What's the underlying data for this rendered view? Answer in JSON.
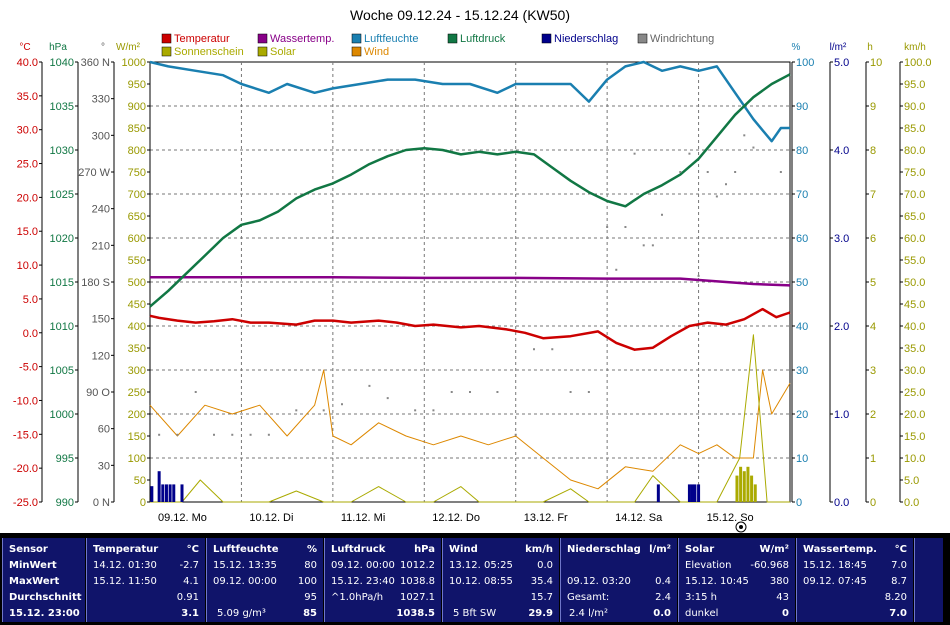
{
  "chart_data": {
    "type": "line",
    "title": "Woche 09.12.24 - 15.12.24 (KW50)",
    "x_labels": [
      "09.12. Mo",
      "10.12. Di",
      "11.12. Mi",
      "12.12. Do",
      "13.12. Fr",
      "14.12. Sa",
      "15.12. So"
    ],
    "legend": [
      {
        "label": "Temperatur",
        "color": "#cc0000"
      },
      {
        "label": "Wassertemp.",
        "color": "#880088"
      },
      {
        "label": "Luftfeuchte",
        "color": "#1a7fb0"
      },
      {
        "label": "Luftdruck",
        "color": "#117744"
      },
      {
        "label": "Niederschlag",
        "color": "#00008b"
      },
      {
        "label": "Windrichtung",
        "color": "#888888"
      },
      {
        "label": "Sonnenschein",
        "color": "#aaaa00"
      },
      {
        "label": "Solar",
        "color": "#aaaa00"
      },
      {
        "label": "Wind",
        "color": "#dd8800"
      }
    ],
    "axes": [
      {
        "unit": "°C",
        "color": "#cc0000",
        "ticks": [
          "40.0",
          "35.0",
          "30.0",
          "25.0",
          "20.0",
          "15.0",
          "10.0",
          "5.0",
          "0.0",
          "-5.0",
          "-10.0",
          "-15.0",
          "-20.0",
          "-25.0"
        ]
      },
      {
        "unit": "hPa",
        "color": "#117744",
        "ticks": [
          "1040",
          "1035",
          "1030",
          "1025",
          "1020",
          "1015",
          "1010",
          "1005",
          "1000",
          "995",
          "990"
        ]
      },
      {
        "unit": "°",
        "color": "#555555",
        "ticks": [
          "360 N",
          "330",
          "300",
          "270 W",
          "240",
          "210",
          "180 S",
          "150",
          "120",
          "90 O",
          "60",
          "30",
          "0 N"
        ]
      },
      {
        "unit": "W/m²",
        "color": "#999900",
        "ticks": [
          "1000",
          "950",
          "900",
          "850",
          "800",
          "750",
          "700",
          "650",
          "600",
          "550",
          "500",
          "450",
          "400",
          "350",
          "300",
          "250",
          "200",
          "150",
          "100",
          "50",
          "0"
        ]
      },
      {
        "unit": "%",
        "color": "#1a7fb0",
        "ticks": [
          "100",
          "90",
          "80",
          "70",
          "60",
          "50",
          "40",
          "30",
          "20",
          "10",
          "0"
        ]
      },
      {
        "unit": "l/m²",
        "color": "#00008b",
        "ticks": [
          "5.0",
          "4.0",
          "3.0",
          "2.0",
          "1.0",
          "0.0"
        ]
      },
      {
        "unit": "h",
        "color": "#999900",
        "ticks": [
          "10",
          "9",
          "8",
          "7",
          "6",
          "5",
          "4",
          "3",
          "2",
          "1",
          "0"
        ]
      },
      {
        "unit": "km/h",
        "color": "#999900",
        "ticks": [
          "100.0",
          "95.0",
          "90.0",
          "85.0",
          "80.0",
          "75.0",
          "70.0",
          "65.0",
          "60.0",
          "55.0",
          "50.0",
          "45.0",
          "40.0",
          "35.0",
          "30.0",
          "25.0",
          "20.0",
          "15.0",
          "10.0",
          "5.0",
          "0.0"
        ]
      }
    ],
    "series": [
      {
        "name": "Temperatur",
        "color": "#cc0000",
        "axis": "°C",
        "x": [
          0,
          0.1,
          0.3,
          0.5,
          0.7,
          0.9,
          1.1,
          1.3,
          1.6,
          1.8,
          2.0,
          2.2,
          2.5,
          2.7,
          2.9,
          3.1,
          3.4,
          3.6,
          3.9,
          4.1,
          4.3,
          4.6,
          4.9,
          5.1,
          5.3,
          5.5,
          5.7,
          5.9,
          6.1,
          6.3,
          6.5,
          6.7,
          6.85,
          7.0
        ],
        "y": [
          2.5,
          2.2,
          1.8,
          1.5,
          1.7,
          2.0,
          1.5,
          1.5,
          1.2,
          1.8,
          1.8,
          1.5,
          1.8,
          1.5,
          1.0,
          1.2,
          0.8,
          1.0,
          0.5,
          0.0,
          -0.8,
          -0.5,
          0.2,
          -1.5,
          -2.5,
          -2.2,
          -0.5,
          1.0,
          1.5,
          1.2,
          2.0,
          3.5,
          2.3,
          3.0
        ]
      },
      {
        "name": "Wassertemp.",
        "color": "#880088",
        "axis": "°C",
        "x": [
          0,
          1,
          2,
          3,
          4,
          5,
          5.8,
          6.3,
          6.6,
          7.0
        ],
        "y": [
          8.2,
          8.2,
          8.2,
          8.1,
          8.1,
          8.0,
          8.0,
          7.5,
          7.2,
          7.0
        ]
      },
      {
        "name": "Luftfeuchte",
        "color": "#1a7fb0",
        "axis": "%",
        "x": [
          0,
          0.2,
          0.5,
          0.8,
          1.0,
          1.3,
          1.5,
          1.8,
          2.0,
          2.3,
          2.6,
          2.9,
          3.2,
          3.5,
          3.8,
          4.0,
          4.3,
          4.6,
          4.8,
          5.0,
          5.2,
          5.4,
          5.6,
          5.8,
          6.0,
          6.2,
          6.4,
          6.6,
          6.8,
          6.9,
          7.0
        ],
        "y": [
          100,
          99,
          98,
          97,
          95,
          93,
          95,
          93,
          94,
          95,
          96,
          96,
          95,
          95,
          93,
          95,
          95,
          95,
          91,
          96,
          99,
          100,
          98,
          99,
          98,
          99,
          93,
          87,
          82,
          85,
          85
        ]
      },
      {
        "name": "Luftdruck",
        "color": "#117744",
        "axis": "hPa",
        "x": [
          0,
          0.2,
          0.4,
          0.6,
          0.8,
          1.0,
          1.2,
          1.4,
          1.6,
          1.8,
          2.0,
          2.2,
          2.4,
          2.6,
          2.8,
          3.0,
          3.2,
          3.4,
          3.6,
          3.8,
          4.0,
          4.2,
          4.4,
          4.6,
          4.8,
          5.0,
          5.2,
          5.4,
          5.6,
          5.8,
          6.0,
          6.2,
          6.4,
          6.6,
          6.8,
          7.0
        ],
        "y": [
          1012.2,
          1014,
          1016,
          1018,
          1020,
          1021.5,
          1022,
          1023,
          1024.5,
          1025.5,
          1026.2,
          1027.2,
          1028.4,
          1029.3,
          1030,
          1030.2,
          1030,
          1029.5,
          1029.8,
          1029.5,
          1029.8,
          1029.5,
          1028,
          1026.5,
          1025.2,
          1024.2,
          1023.6,
          1025,
          1026,
          1027.2,
          1029,
          1031.5,
          1034,
          1036,
          1037.5,
          1038.6
        ]
      },
      {
        "name": "Wind",
        "color": "#dd8800",
        "axis": "km/h",
        "x": [
          0,
          0.3,
          0.6,
          0.9,
          1.2,
          1.5,
          1.8,
          1.9,
          2.0,
          2.2,
          2.5,
          2.8,
          3.1,
          3.4,
          3.7,
          4.0,
          4.3,
          4.6,
          4.9,
          5.2,
          5.5,
          5.8,
          6.0,
          6.2,
          6.4,
          6.6,
          6.7,
          6.8,
          7.0
        ],
        "y": [
          22,
          15,
          22,
          20,
          22,
          15,
          22,
          30,
          15,
          13,
          18,
          15,
          13,
          15,
          13,
          15,
          10,
          5,
          3,
          8,
          7,
          13,
          11,
          13,
          10,
          10,
          30,
          20,
          27
        ]
      },
      {
        "name": "Solar",
        "color": "#aaaa00",
        "axis": "W/m²",
        "x": [
          0,
          0.35,
          0.55,
          0.8,
          1.3,
          1.6,
          1.9,
          2.2,
          2.5,
          2.8,
          3.1,
          3.4,
          3.6,
          3.9,
          4.3,
          4.6,
          4.8,
          5.0,
          5.3,
          5.5,
          5.8,
          6.0,
          6.2,
          6.45,
          6.6,
          6.75,
          6.85,
          7.0
        ],
        "y": [
          0,
          0,
          50,
          0,
          0,
          25,
          0,
          0,
          35,
          0,
          0,
          35,
          0,
          0,
          0,
          30,
          0,
          0,
          0,
          60,
          0,
          0,
          0,
          100,
          380,
          0,
          0,
          0
        ]
      },
      {
        "name": "Sonnenschein",
        "color": "#aaaa00",
        "axis": "h",
        "type": "bar",
        "x": [
          6.42,
          6.46,
          6.5,
          6.54,
          6.58,
          6.62
        ],
        "y": [
          0.6,
          0.8,
          0.7,
          0.8,
          0.6,
          0.4
        ]
      },
      {
        "name": "Niederschlag",
        "color": "#00008b",
        "axis": "l/m²",
        "type": "bar",
        "x": [
          0.02,
          0.1,
          0.14,
          0.18,
          0.22,
          0.26,
          0.35,
          5.56,
          5.9,
          5.93,
          5.96,
          6.0
        ],
        "y": [
          0.18,
          0.35,
          0.2,
          0.2,
          0.2,
          0.2,
          0.2,
          0.2,
          0.2,
          0.2,
          0.2,
          0.2
        ]
      },
      {
        "name": "Windrichtung",
        "color": "#888888",
        "axis": "°",
        "type": "scatter",
        "x": [
          0.1,
          0.3,
          0.5,
          0.7,
          0.9,
          1.1,
          1.3,
          1.6,
          1.9,
          2.1,
          2.4,
          2.6,
          2.9,
          3.1,
          3.3,
          3.5,
          3.8,
          4.0,
          4.2,
          4.4,
          4.6,
          4.8,
          5.0,
          5.1,
          5.2,
          5.3,
          5.4,
          5.5,
          5.6,
          5.8,
          5.9,
          6.0,
          6.1,
          6.2,
          6.3,
          6.4,
          6.5,
          6.6,
          6.9
        ],
        "y": [
          55,
          55,
          90,
          55,
          55,
          55,
          55,
          75,
          75,
          80,
          95,
          85,
          75,
          75,
          90,
          90,
          90,
          55,
          125,
          125,
          90,
          90,
          225,
          190,
          225,
          285,
          210,
          210,
          235,
          270,
          285,
          185,
          270,
          250,
          260,
          270,
          300,
          290,
          270
        ]
      }
    ]
  },
  "footer": {
    "sensor": {
      "header": "Sensor",
      "rows": [
        "MinWert",
        "MaxWert",
        "Durchschnitt",
        "15.12. 23:00"
      ]
    },
    "temperatur": {
      "header": "Temperatur",
      "unit": "°C",
      "min_time": "14.12.  01:30",
      "min_val": "-2.7",
      "max_time": "15.12.  11:50",
      "max_val": "4.1",
      "avg": "0.91",
      "current": "3.1"
    },
    "luftfeuchte": {
      "header": "Luftfeuchte",
      "unit": "%",
      "min_time": "15.12.  13:35",
      "min_val": "80",
      "max_time": "09.12.  00:00",
      "max_val": "100",
      "avg": "95",
      "extra": "5.09 g/m³",
      "current": "85"
    },
    "luftdruck": {
      "header": "Luftdruck",
      "unit": "hPa",
      "min_time": "09.12.  00:00",
      "min_val": "1012.2",
      "max_time": "15.12.  23:40",
      "max_val": "1038.8",
      "extra": "^1.0hPa/h",
      "avg": "1027.1",
      "current": "1038.5"
    },
    "wind": {
      "header": "Wind",
      "unit": "km/h",
      "min_time": "13.12.  05:25",
      "min_val": "0.0",
      "max_time": "10.12.  08:55",
      "max_val": "35.4",
      "avg": "15.7",
      "extra": "5 Bft SW",
      "current": "29.9"
    },
    "niederschlag": {
      "header": "Niederschlag",
      "unit": "l/m²",
      "max_time": "09.12.  03:20",
      "max_val": "0.4",
      "total_label": "Gesamt:",
      "total_val": "2.4",
      "extra": "2.4 l/m²",
      "current": "0.0"
    },
    "solar": {
      "header": "Solar",
      "unit": "W/m²",
      "elev_label": "Elevation",
      "elev_val": "-60.968",
      "max_time": "15.12.  10:45",
      "max_val": "380",
      "sun_label": "3:15 h",
      "sun_val": "43",
      "state": "dunkel",
      "current": "0"
    },
    "wassertemp": {
      "header": "Wassertemp.",
      "unit": "°C",
      "min_time": "15.12.  18:45",
      "min_val": "7.0",
      "max_time": "09.12.  07:45",
      "max_val": "8.7",
      "avg": "8.20",
      "current": "7.0"
    }
  }
}
